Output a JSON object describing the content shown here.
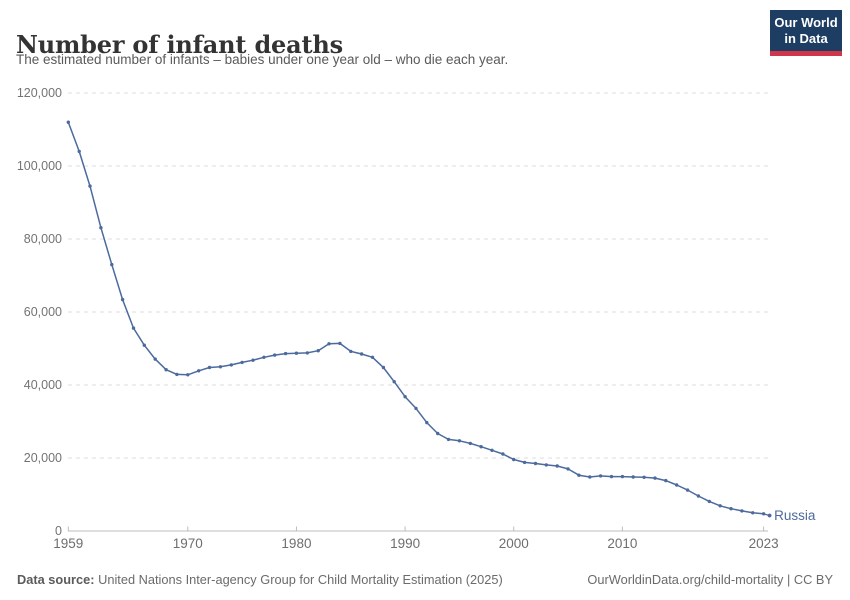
{
  "header": {
    "title": "Number of infant deaths",
    "subtitle": "The estimated number of infants – babies under one year old – who die each year.",
    "logo": {
      "line1": "Our World",
      "line2": "in Data"
    }
  },
  "chart_data": {
    "type": "line",
    "title": "Number of infant deaths",
    "entity": "Russia",
    "legend_position": "end-of-line-label",
    "grid": true,
    "xlim": [
      1959,
      2023
    ],
    "ylim": [
      0,
      120000
    ],
    "x": [
      1959,
      1960,
      1961,
      1962,
      1963,
      1964,
      1965,
      1966,
      1967,
      1968,
      1969,
      1970,
      1971,
      1972,
      1973,
      1974,
      1975,
      1976,
      1977,
      1978,
      1979,
      1980,
      1981,
      1982,
      1983,
      1984,
      1985,
      1986,
      1987,
      1988,
      1989,
      1990,
      1991,
      1992,
      1993,
      1994,
      1995,
      1996,
      1997,
      1998,
      1999,
      2000,
      2001,
      2002,
      2003,
      2004,
      2005,
      2006,
      2007,
      2008,
      2009,
      2010,
      2011,
      2012,
      2013,
      2014,
      2015,
      2016,
      2017,
      2018,
      2019,
      2020,
      2021,
      2022,
      2023
    ],
    "series": [
      {
        "name": "Russia",
        "values": [
          112000,
          104000,
          94500,
          83100,
          73000,
          63400,
          55600,
          50900,
          47100,
          44200,
          42900,
          42800,
          43900,
          44800,
          45000,
          45500,
          46200,
          46800,
          47600,
          48200,
          48600,
          48700,
          48800,
          49400,
          51300,
          51400,
          49200,
          48500,
          47600,
          44800,
          40900,
          36800,
          33600,
          29700,
          26700,
          25100,
          24700,
          24000,
          23100,
          22100,
          21100,
          19600,
          18800,
          18500,
          18100,
          17800,
          17000,
          15300,
          14800,
          15100,
          14900,
          14900,
          14800,
          14700,
          14500,
          13800,
          12600,
          11200,
          9600,
          8100,
          6900,
          6100,
          5500,
          5000,
          4700
        ]
      }
    ],
    "xticks": {
      "values": [
        1959,
        1970,
        1980,
        1990,
        2000,
        2010,
        2023
      ],
      "labels": [
        "1959",
        "1970",
        "1980",
        "1990",
        "2000",
        "2010",
        "2023"
      ]
    },
    "yticks": {
      "values": [
        0,
        20000,
        40000,
        60000,
        80000,
        100000,
        120000
      ],
      "labels": [
        "0",
        "20,000",
        "40,000",
        "60,000",
        "80,000",
        "100,000",
        "120,000"
      ]
    },
    "colors": {
      "line": "#4c6a9c",
      "grid": "#dedede",
      "axis": "#bdbdbd",
      "y_tick_label": "#737373",
      "x_tick_label": "#6e6e6e",
      "entity_label": "#4c6a9c"
    }
  },
  "footer": {
    "source_label": "Data source:",
    "source_text": " United Nations Inter-agency Group for Child Mortality Estimation (2025)",
    "link_text": "OurWorldinData.org/child-mortality | CC BY"
  }
}
